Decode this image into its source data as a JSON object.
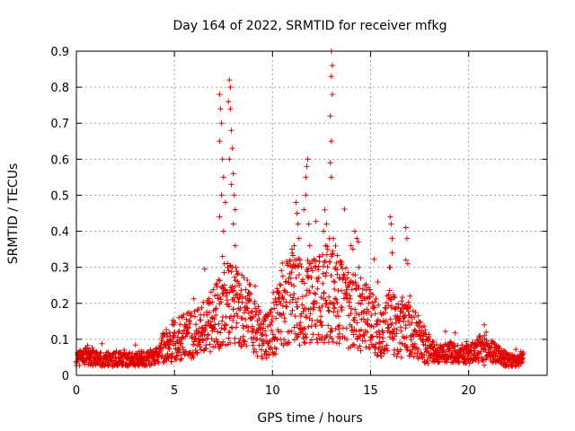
{
  "chart_data": {
    "type": "scatter",
    "title": "Day 164 of 2022, SRMTID for receiver mfkg",
    "xlabel": "GPS time / hours",
    "ylabel": "SRMTID / TECUs",
    "xlim": [
      0,
      24
    ],
    "ylim": [
      0,
      0.9
    ],
    "xticks": [
      0,
      5,
      10,
      15,
      20
    ],
    "yticks": [
      0,
      0.1,
      0.2,
      0.3,
      0.4,
      0.5,
      0.6,
      0.7,
      0.8,
      0.9
    ],
    "grid": true,
    "marker": "+",
    "series_color": "#e00000",
    "baseline_profile": [
      [
        0.0,
        0.045
      ],
      [
        0.5,
        0.055
      ],
      [
        1.0,
        0.045
      ],
      [
        2.0,
        0.045
      ],
      [
        3.0,
        0.045
      ],
      [
        4.0,
        0.05
      ],
      [
        4.5,
        0.08
      ],
      [
        5.0,
        0.1
      ],
      [
        5.5,
        0.11
      ],
      [
        6.0,
        0.11
      ],
      [
        6.5,
        0.13
      ],
      [
        7.0,
        0.15
      ],
      [
        7.3,
        0.17
      ],
      [
        7.6,
        0.2
      ],
      [
        8.0,
        0.2
      ],
      [
        8.5,
        0.18
      ],
      [
        9.0,
        0.15
      ],
      [
        9.5,
        0.1
      ],
      [
        10.0,
        0.12
      ],
      [
        10.5,
        0.2
      ],
      [
        11.0,
        0.22
      ],
      [
        11.5,
        0.2
      ],
      [
        12.0,
        0.2
      ],
      [
        12.5,
        0.22
      ],
      [
        13.0,
        0.23
      ],
      [
        13.5,
        0.2
      ],
      [
        14.0,
        0.18
      ],
      [
        14.5,
        0.17
      ],
      [
        15.0,
        0.15
      ],
      [
        15.5,
        0.12
      ],
      [
        16.0,
        0.15
      ],
      [
        16.5,
        0.12
      ],
      [
        17.0,
        0.13
      ],
      [
        17.5,
        0.1
      ],
      [
        18.0,
        0.07
      ],
      [
        18.5,
        0.06
      ],
      [
        19.0,
        0.065
      ],
      [
        19.5,
        0.06
      ],
      [
        20.0,
        0.06
      ],
      [
        20.5,
        0.07
      ],
      [
        21.0,
        0.07
      ],
      [
        21.5,
        0.06
      ],
      [
        22.0,
        0.04
      ],
      [
        22.5,
        0.04
      ],
      [
        22.8,
        0.05
      ]
    ],
    "peak_points": [
      [
        7.3,
        0.78
      ],
      [
        7.35,
        0.74
      ],
      [
        7.4,
        0.7
      ],
      [
        7.3,
        0.65
      ],
      [
        7.45,
        0.6
      ],
      [
        7.5,
        0.55
      ],
      [
        7.4,
        0.5
      ],
      [
        7.6,
        0.48
      ],
      [
        7.3,
        0.44
      ],
      [
        7.5,
        0.4
      ],
      [
        7.45,
        0.33
      ],
      [
        7.55,
        0.31
      ],
      [
        7.8,
        0.82
      ],
      [
        7.85,
        0.8
      ],
      [
        7.75,
        0.76
      ],
      [
        7.85,
        0.74
      ],
      [
        7.9,
        0.68
      ],
      [
        7.95,
        0.63
      ],
      [
        7.8,
        0.6
      ],
      [
        8.0,
        0.56
      ],
      [
        7.9,
        0.53
      ],
      [
        8.05,
        0.5
      ],
      [
        8.1,
        0.46
      ],
      [
        8.0,
        0.42
      ],
      [
        8.1,
        0.36
      ],
      [
        7.95,
        0.3
      ],
      [
        8.2,
        0.28
      ],
      [
        8.3,
        0.25
      ],
      [
        10.9,
        0.32
      ],
      [
        11.0,
        0.3
      ],
      [
        11.2,
        0.48
      ],
      [
        11.25,
        0.45
      ],
      [
        11.3,
        0.42
      ],
      [
        11.1,
        0.36
      ],
      [
        11.35,
        0.38
      ],
      [
        11.4,
        0.32
      ],
      [
        11.6,
        0.46
      ],
      [
        11.7,
        0.5
      ],
      [
        11.75,
        0.58
      ],
      [
        11.8,
        0.6
      ],
      [
        11.7,
        0.55
      ],
      [
        11.85,
        0.42
      ],
      [
        11.9,
        0.36
      ],
      [
        12.2,
        0.3
      ],
      [
        12.4,
        0.33
      ],
      [
        12.6,
        0.4
      ],
      [
        12.7,
        0.36
      ],
      [
        12.75,
        0.42
      ],
      [
        12.9,
        0.38
      ],
      [
        13.0,
        0.9
      ],
      [
        13.05,
        0.86
      ],
      [
        13.0,
        0.83
      ],
      [
        13.05,
        0.78
      ],
      [
        12.95,
        0.72
      ],
      [
        13.0,
        0.65
      ],
      [
        12.95,
        0.59
      ],
      [
        13.0,
        0.55
      ],
      [
        13.1,
        0.38
      ],
      [
        13.2,
        0.3
      ],
      [
        13.3,
        0.28
      ],
      [
        13.4,
        0.27
      ],
      [
        14.0,
        0.36
      ],
      [
        14.1,
        0.35
      ],
      [
        14.2,
        0.4
      ],
      [
        14.3,
        0.38
      ],
      [
        14.4,
        0.3
      ],
      [
        14.5,
        0.27
      ],
      [
        16.0,
        0.44
      ],
      [
        16.05,
        0.42
      ],
      [
        16.1,
        0.38
      ],
      [
        16.1,
        0.34
      ],
      [
        16.0,
        0.3
      ],
      [
        16.8,
        0.41
      ],
      [
        16.85,
        0.38
      ],
      [
        16.8,
        0.32
      ],
      [
        16.9,
        0.31
      ],
      [
        17.0,
        0.22
      ],
      [
        20.8,
        0.14
      ],
      [
        20.9,
        0.12
      ]
    ]
  }
}
